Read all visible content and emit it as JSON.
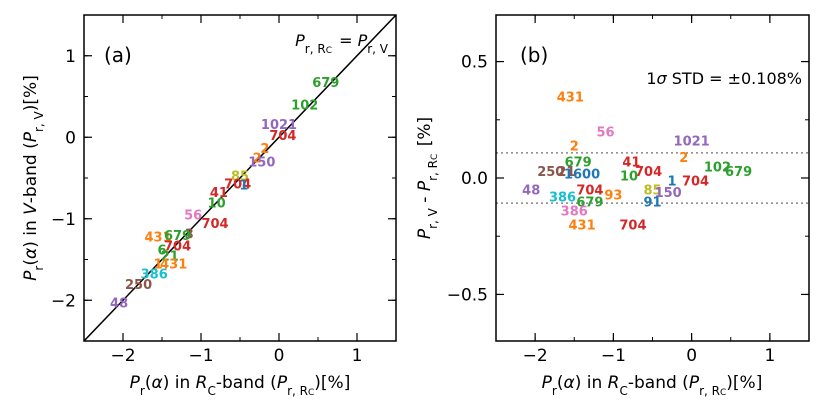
{
  "chart_data": [
    {
      "type": "scatter",
      "panel_label": "(a)",
      "xlabel": "P_r(α) in R_C-band (P_r,RC)[%]",
      "ylabel": "P_r(α) in V-band (P_r,V)[%]",
      "xlim": [
        -2.5,
        1.5
      ],
      "ylim": [
        -2.5,
        1.5
      ],
      "xticks": [
        -2,
        -1,
        0,
        1
      ],
      "yticks": [
        -2,
        -1,
        0,
        1
      ],
      "grid": false,
      "annotation": "P_r,RC = P_r,V",
      "reference_line": {
        "from": [
          -2.5,
          -2.5
        ],
        "to": [
          1.5,
          1.5
        ]
      },
      "points": [
        {
          "label": "679",
          "x": 0.6,
          "y": 0.68,
          "color": "#2ca02c"
        },
        {
          "label": "102",
          "x": 0.33,
          "y": 0.4,
          "color": "#2ca02c"
        },
        {
          "label": "1021",
          "x": 0.0,
          "y": 0.16,
          "color": "#9467bd"
        },
        {
          "label": "704",
          "x": 0.05,
          "y": 0.03,
          "color": "#d62728"
        },
        {
          "label": "2",
          "x": -0.18,
          "y": -0.13,
          "color": "#ff7f0e"
        },
        {
          "label": "2",
          "x": -0.28,
          "y": -0.25,
          "color": "#ff7f0e"
        },
        {
          "label": "150",
          "x": -0.22,
          "y": -0.3,
          "color": "#9467bd"
        },
        {
          "label": "85",
          "x": -0.5,
          "y": -0.47,
          "color": "#bcbd22"
        },
        {
          "label": "704",
          "x": -0.53,
          "y": -0.57,
          "color": "#d62728"
        },
        {
          "label": "1",
          "x": -0.45,
          "y": -0.58,
          "color": "#1f77b4"
        },
        {
          "label": "41",
          "x": -0.77,
          "y": -0.67,
          "color": "#d62728"
        },
        {
          "label": "10",
          "x": -0.8,
          "y": -0.8,
          "color": "#2ca02c"
        },
        {
          "label": "56",
          "x": -1.1,
          "y": -0.95,
          "color": "#e377c2"
        },
        {
          "label": "704",
          "x": -0.82,
          "y": -1.05,
          "color": "#d62728"
        },
        {
          "label": "431",
          "x": -1.55,
          "y": -1.22,
          "color": "#ff7f0e"
        },
        {
          "label": "3",
          "x": -1.15,
          "y": -1.18,
          "color": "#8c564b"
        },
        {
          "label": "679",
          "x": -1.3,
          "y": -1.2,
          "color": "#2ca02c"
        },
        {
          "label": "704",
          "x": -1.3,
          "y": -1.33,
          "color": "#d62728"
        },
        {
          "label": "6",
          "x": -1.5,
          "y": -1.38,
          "color": "#2ca02c"
        },
        {
          "label": "21",
          "x": -1.4,
          "y": -1.45,
          "color": "#2ca02c"
        },
        {
          "label": "431",
          "x": -1.35,
          "y": -1.55,
          "color": "#ff7f0e"
        },
        {
          "label": "1",
          "x": -1.55,
          "y": -1.55,
          "color": "#ff7f0e"
        },
        {
          "label": "386",
          "x": -1.6,
          "y": -1.67,
          "color": "#17becf"
        },
        {
          "label": "250",
          "x": -1.8,
          "y": -1.8,
          "color": "#8c564b"
        },
        {
          "label": "48",
          "x": -2.05,
          "y": -2.03,
          "color": "#9467bd"
        }
      ]
    },
    {
      "type": "scatter",
      "panel_label": "(b)",
      "xlabel": "P_r(α) in R_C-band (P_r,RC)[%]",
      "ylabel": "P_r,V - P_r,RC [%]",
      "xlim": [
        -2.5,
        1.5
      ],
      "ylim": [
        -0.7,
        0.7
      ],
      "xticks": [
        -2,
        -1,
        0,
        1
      ],
      "yticks": [
        -0.5,
        0.0,
        0.5
      ],
      "grid": false,
      "annotation": "1σ STD = ±0.108%",
      "std_band": [
        -0.108,
        0.108
      ],
      "points": [
        {
          "label": "431",
          "x": -1.55,
          "y": 0.35,
          "color": "#ff7f0e"
        },
        {
          "label": "56",
          "x": -1.1,
          "y": 0.2,
          "color": "#e377c2"
        },
        {
          "label": "1021",
          "x": 0.0,
          "y": 0.16,
          "color": "#9467bd"
        },
        {
          "label": "2",
          "x": -1.5,
          "y": 0.14,
          "color": "#ff7f0e"
        },
        {
          "label": "2",
          "x": -0.1,
          "y": 0.09,
          "color": "#ff7f0e"
        },
        {
          "label": "679",
          "x": -1.45,
          "y": 0.07,
          "color": "#2ca02c"
        },
        {
          "label": "41",
          "x": -0.77,
          "y": 0.07,
          "color": "#d62728"
        },
        {
          "label": "250",
          "x": -1.8,
          "y": 0.03,
          "color": "#8c564b"
        },
        {
          "label": "21",
          "x": -1.6,
          "y": 0.03,
          "color": "#8c564b"
        },
        {
          "label": "1600",
          "x": -1.4,
          "y": 0.02,
          "color": "#1f77b4"
        },
        {
          "label": "10",
          "x": -0.8,
          "y": 0.01,
          "color": "#2ca02c"
        },
        {
          "label": "704",
          "x": -0.55,
          "y": 0.03,
          "color": "#d62728"
        },
        {
          "label": "102",
          "x": 0.33,
          "y": 0.05,
          "color": "#2ca02c"
        },
        {
          "label": "679",
          "x": 0.6,
          "y": 0.03,
          "color": "#2ca02c"
        },
        {
          "label": "704",
          "x": 0.05,
          "y": -0.01,
          "color": "#d62728"
        },
        {
          "label": "1",
          "x": -0.25,
          "y": -0.01,
          "color": "#1f77b4"
        },
        {
          "label": "48",
          "x": -2.05,
          "y": -0.05,
          "color": "#9467bd"
        },
        {
          "label": "704",
          "x": -1.3,
          "y": -0.05,
          "color": "#d62728"
        },
        {
          "label": "85",
          "x": -0.5,
          "y": -0.05,
          "color": "#bcbd22"
        },
        {
          "label": "150",
          "x": -0.3,
          "y": -0.06,
          "color": "#9467bd"
        },
        {
          "label": "93",
          "x": -1.0,
          "y": -0.07,
          "color": "#ff7f0e"
        },
        {
          "label": "386",
          "x": -1.65,
          "y": -0.08,
          "color": "#17becf"
        },
        {
          "label": "679",
          "x": -1.3,
          "y": -0.1,
          "color": "#2ca02c"
        },
        {
          "label": "91",
          "x": -0.5,
          "y": -0.1,
          "color": "#1f77b4"
        },
        {
          "label": "704",
          "x": -0.75,
          "y": -0.2,
          "color": "#d62728"
        },
        {
          "label": "431",
          "x": -1.4,
          "y": -0.2,
          "color": "#ff7f0e"
        },
        {
          "label": "386",
          "x": -1.5,
          "y": -0.14,
          "color": "#e377c2"
        }
      ]
    }
  ]
}
